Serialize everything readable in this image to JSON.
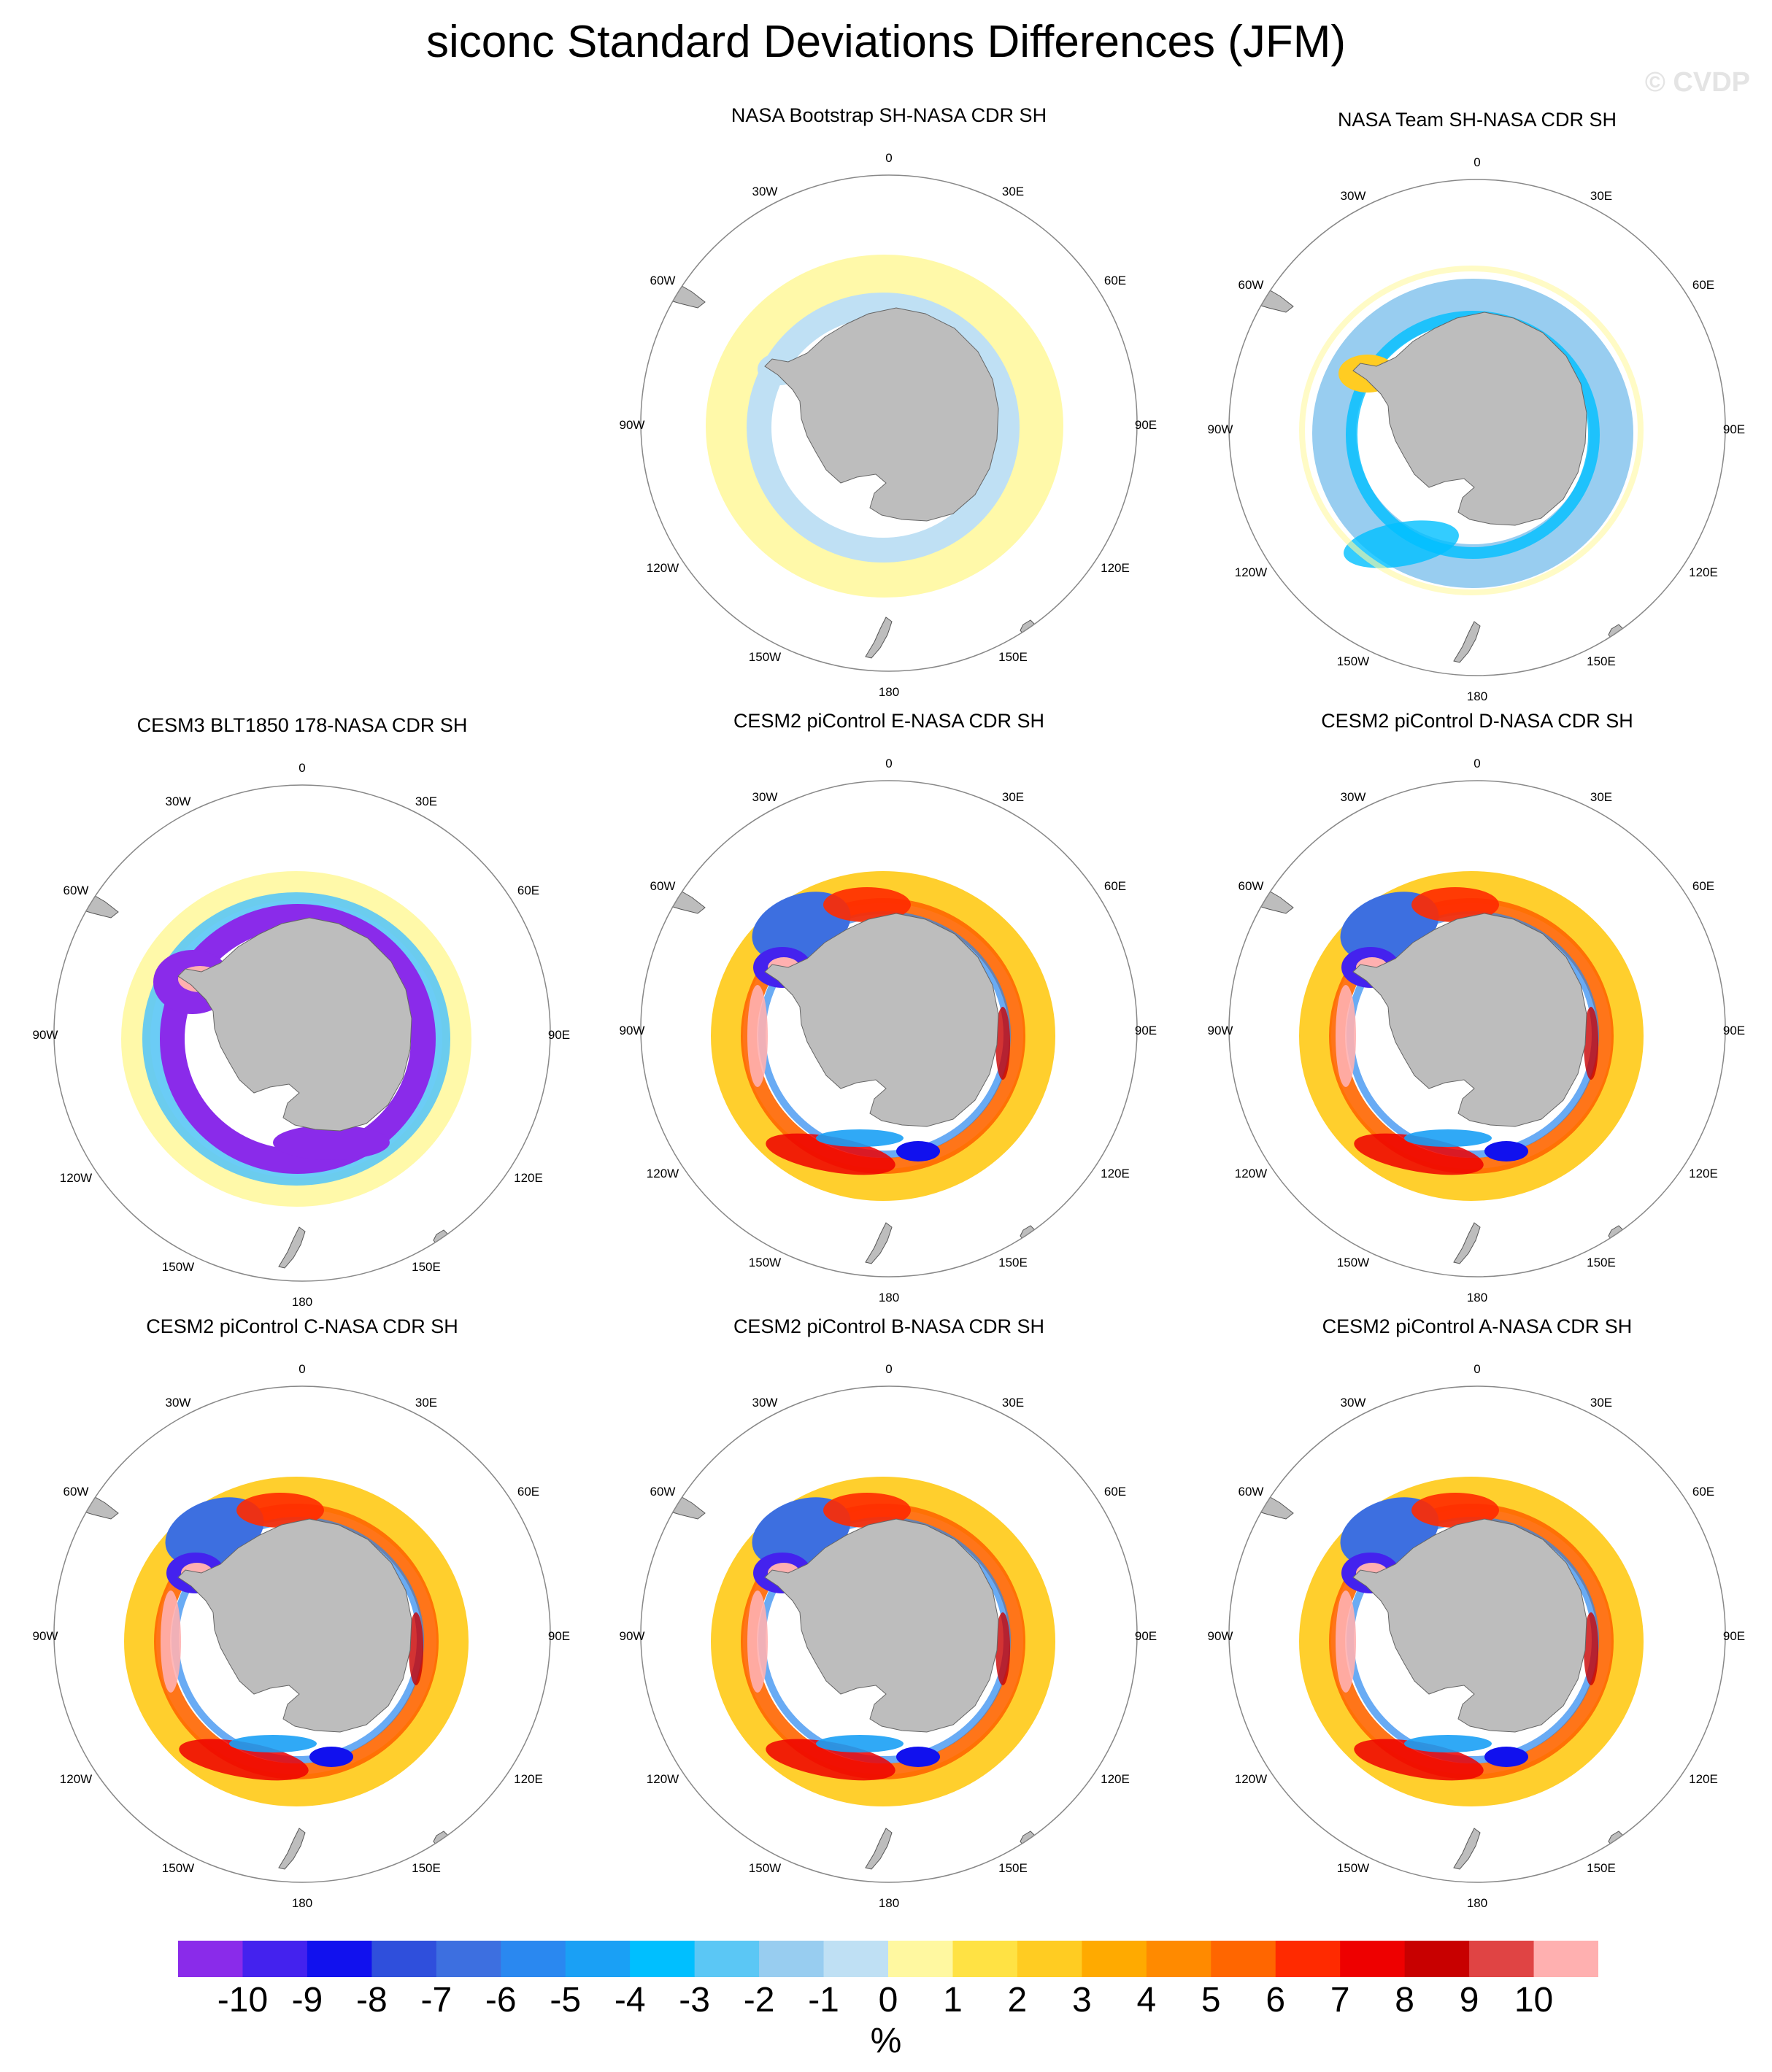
{
  "title": "siconc Standard Deviations Differences (JFM)",
  "watermark": "© CVDP",
  "lon_labels": [
    "0",
    "30E",
    "60E",
    "90E",
    "120E",
    "150E",
    "180",
    "150W",
    "120W",
    "90W",
    "60W",
    "30W"
  ],
  "colors": {
    "land": "#bdbdbd",
    "ocean": "#ffffff",
    "border": "#888888",
    "palette": [
      "#8a2bea",
      "#4422ee",
      "#1111ee",
      "#2f4fdc",
      "#3d6fe0",
      "#2a88f0",
      "#1aa0f5",
      "#00bfff",
      "#5bc7f5",
      "#98cdf0",
      "#bfe0f4",
      "#fff8a0",
      "#ffe244",
      "#ffcc22",
      "#ffaa00",
      "#ff8a00",
      "#ff6600",
      "#ff2a00",
      "#ee0000",
      "#c80000",
      "#e04444",
      "#ffb0b0"
    ]
  },
  "panels": [
    {
      "id": "bootstrap",
      "title": "NASA Bootstrap SH-NASA CDR SH",
      "pattern": "bootstrap"
    },
    {
      "id": "team",
      "title": "NASA Team SH-NASA CDR SH",
      "pattern": "team"
    },
    {
      "id": "cesm3",
      "title": "CESM3 BLT1850 178-NASA CDR SH",
      "pattern": "cesm3"
    },
    {
      "id": "pi-e",
      "title": "CESM2 piControl E-NASA CDR SH",
      "pattern": "cesm2"
    },
    {
      "id": "pi-d",
      "title": "CESM2 piControl D-NASA CDR SH",
      "pattern": "cesm2"
    },
    {
      "id": "pi-c",
      "title": "CESM2 piControl C-NASA CDR SH",
      "pattern": "cesm2"
    },
    {
      "id": "pi-b",
      "title": "CESM2 piControl B-NASA CDR SH",
      "pattern": "cesm2"
    },
    {
      "id": "pi-a",
      "title": "CESM2 piControl A-NASA CDR SH",
      "pattern": "cesm2"
    }
  ],
  "colorbar": {
    "ticks": [
      "-10",
      "-9",
      "-8",
      "-7",
      "-6",
      "-5",
      "-4",
      "-3",
      "-2",
      "-1",
      "0",
      "1",
      "2",
      "3",
      "4",
      "5",
      "6",
      "7",
      "8",
      "9",
      "10"
    ],
    "units": "%"
  }
}
